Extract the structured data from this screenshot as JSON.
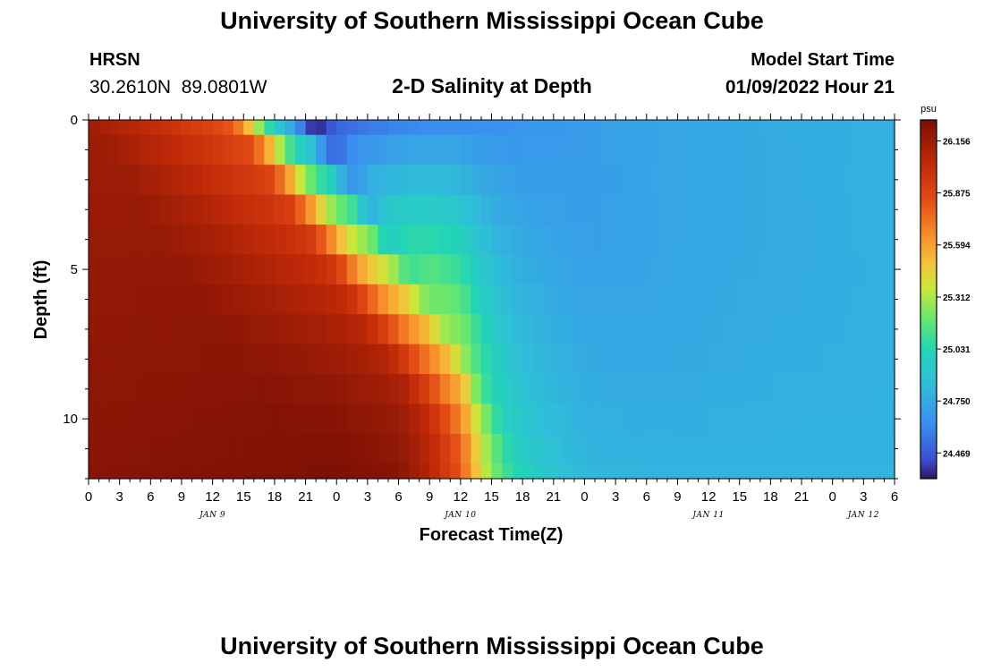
{
  "header": {
    "title": "University of Southern Mississippi Ocean Cube",
    "station": "HRSN",
    "latlon": "30.2610N  89.0801W",
    "subtitle": "2-D Salinity at Depth",
    "start_label": "Model Start Time",
    "start_time": "01/09/2022 Hour 21"
  },
  "footer": {
    "title": "University of Southern Mississippi Ocean Cube"
  },
  "chart_data": {
    "type": "heatmap",
    "xlabel": "Forecast Time(Z)",
    "ylabel": "Depth (ft)",
    "x_range_hours": [
      0,
      78
    ],
    "x_tick_labels": [
      "0",
      "3",
      "6",
      "9",
      "12",
      "15",
      "18",
      "21",
      "0",
      "3",
      "6",
      "9",
      "12",
      "15",
      "18",
      "21",
      "0",
      "3",
      "6",
      "9",
      "12",
      "15",
      "18",
      "21",
      "0",
      "3",
      "6"
    ],
    "date_labels": [
      {
        "label": "JAN 9",
        "hour": 12
      },
      {
        "label": "JAN 10",
        "hour": 36
      },
      {
        "label": "JAN 11",
        "hour": 60
      },
      {
        "label": "JAN 12",
        "hour": 75
      }
    ],
    "y_range_ft": [
      0,
      12
    ],
    "y_tick_labels": [
      0,
      5,
      10
    ],
    "depth_bands_ft": [
      0,
      0.5,
      1.5,
      2.5,
      3.5,
      4.5,
      5.5,
      6.5,
      7.5,
      8.5,
      9.5,
      10.5,
      11.5,
      12
    ],
    "colorbar": {
      "unit": "psu",
      "min": 24.33,
      "max": 26.27,
      "tick_values": [
        24.469,
        24.75,
        25.031,
        25.312,
        25.594,
        25.875,
        26.156
      ],
      "tick_labels": [
        "24.469",
        "24.750",
        "25.031",
        "25.312",
        "25.594",
        "25.875",
        "26.156"
      ]
    },
    "profile": {
      "surface_hours": [
        0,
        6,
        12,
        14,
        15,
        16,
        17,
        18,
        19,
        20,
        21,
        22,
        24,
        27,
        30,
        33,
        39,
        45,
        51,
        57,
        63,
        69,
        78
      ],
      "surface_psu": [
        26.15,
        26.03,
        25.88,
        25.8,
        25.62,
        25.4,
        25.15,
        24.95,
        24.82,
        24.72,
        24.45,
        24.34,
        24.5,
        24.56,
        24.6,
        24.62,
        24.64,
        24.67,
        24.71,
        24.73,
        24.75,
        24.77,
        24.78
      ],
      "bottom_hours": [
        0,
        12,
        24,
        30,
        33,
        36,
        38,
        40,
        42,
        44,
        48,
        54,
        60,
        66,
        72,
        78
      ],
      "bottom_psu": [
        26.22,
        26.24,
        26.26,
        26.22,
        26.08,
        25.8,
        25.4,
        25.12,
        25.0,
        24.92,
        24.82,
        24.8,
        24.8,
        24.8,
        24.8,
        24.8
      ],
      "front_hour_surface": 16,
      "front_hour_bottom": 38
    }
  }
}
